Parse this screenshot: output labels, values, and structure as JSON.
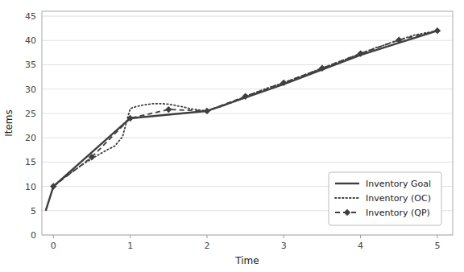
{
  "chart_data": {
    "type": "line",
    "title": "",
    "xlabel": "Time",
    "ylabel": "Items",
    "xlim": [
      -0.15,
      5.2
    ],
    "ylim": [
      0,
      46
    ],
    "xticks": [
      0,
      1,
      2,
      3,
      4,
      5
    ],
    "yticks": [
      0,
      5,
      10,
      15,
      20,
      25,
      30,
      35,
      40,
      45
    ],
    "grid": true,
    "legend": "lower right",
    "series": [
      {
        "name": "Inventory Goal",
        "color": "#3f3f3f",
        "line_style": "solid",
        "x": [
          -0.1,
          0,
          1,
          2,
          3,
          4,
          5
        ],
        "values": [
          5,
          10,
          24,
          25.5,
          31,
          37,
          42
        ]
      },
      {
        "name": "Inventory (OC)",
        "color": "#3f3f3f",
        "line_style": "dotted",
        "x": [
          0,
          0.1,
          0.2,
          0.3,
          0.4,
          0.5,
          0.6,
          0.7,
          0.8,
          0.9,
          1.0,
          1.1,
          1.2,
          1.3,
          1.4,
          1.5,
          1.6,
          1.7,
          1.8,
          1.9,
          2.0,
          2.1,
          2.2,
          2.3,
          2.4,
          2.5,
          2.6,
          2.7,
          2.8,
          2.9,
          3.0,
          3.1,
          3.2,
          3.3,
          3.4,
          3.5,
          3.6,
          3.7,
          3.8,
          3.9,
          4.0,
          4.1,
          4.2,
          4.3,
          4.4,
          4.5,
          4.6,
          4.7,
          4.8,
          4.9,
          5.0
        ],
        "values": [
          10,
          11.3,
          12.5,
          13.6,
          14.7,
          15.7,
          16.6,
          17.5,
          18.3,
          20.2,
          26.0,
          26.5,
          26.8,
          27.0,
          27.0,
          26.9,
          26.6,
          26.3,
          25.9,
          25.7,
          25.5,
          26.0,
          26.5,
          27.1,
          27.8,
          28.5,
          29.1,
          29.7,
          30.3,
          30.8,
          31.3,
          31.9,
          32.5,
          33.1,
          33.7,
          34.3,
          34.9,
          35.5,
          36.1,
          36.7,
          37.3,
          37.9,
          38.5,
          39.0,
          39.6,
          40.1,
          40.6,
          41.1,
          41.4,
          41.7,
          42.0
        ]
      },
      {
        "name": "Inventory (QP)",
        "color": "#3f3f3f",
        "line_style": "dashed",
        "marker": "diamond",
        "x": [
          0,
          0.5,
          1.0,
          1.5,
          2.0,
          2.5,
          3.0,
          3.5,
          4.0,
          4.5,
          5.0
        ],
        "values": [
          10,
          16.0,
          24.0,
          25.8,
          25.5,
          28.5,
          31.3,
          34.3,
          37.3,
          40.1,
          42.0
        ]
      }
    ]
  }
}
